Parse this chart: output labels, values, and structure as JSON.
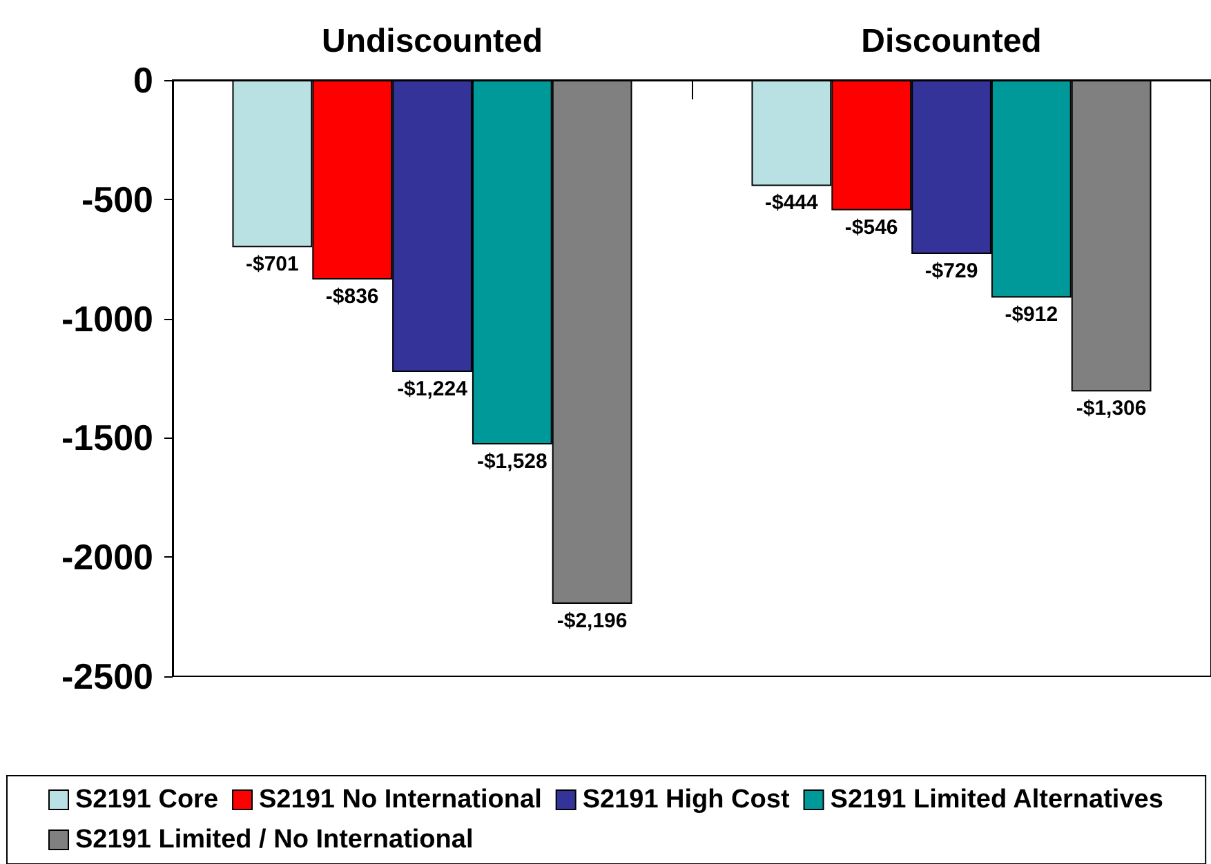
{
  "chart_data": {
    "type": "bar",
    "categories": [
      "Undiscounted",
      "Discounted"
    ],
    "series": [
      {
        "name": "S2191 Core",
        "color": "#b9e0e3",
        "values": [
          -701,
          -444
        ],
        "value_labels": [
          "-$701",
          "-$444"
        ]
      },
      {
        "name": "S2191 No International",
        "color": "#ff0000",
        "values": [
          -836,
          -546
        ],
        "value_labels": [
          "-$836",
          "-$546"
        ]
      },
      {
        "name": "S2191 High Cost",
        "color": "#333399",
        "values": [
          -1224,
          -729
        ],
        "value_labels": [
          "-$1,224",
          "-$729"
        ]
      },
      {
        "name": "S2191 Limited Alternatives",
        "color": "#009999",
        "values": [
          -1528,
          -912
        ],
        "value_labels": [
          "-$1,528",
          "-$912"
        ]
      },
      {
        "name": "S2191 Limited / No International",
        "color": "#808080",
        "values": [
          -2196,
          -1306
        ],
        "value_labels": [
          "-$2,196",
          "-$1,306"
        ]
      }
    ],
    "ylim": [
      -2500,
      0
    ],
    "yticks": [
      -2500,
      -2000,
      -1500,
      -1000,
      -500,
      0
    ],
    "grid": false,
    "legend": "bottom"
  }
}
